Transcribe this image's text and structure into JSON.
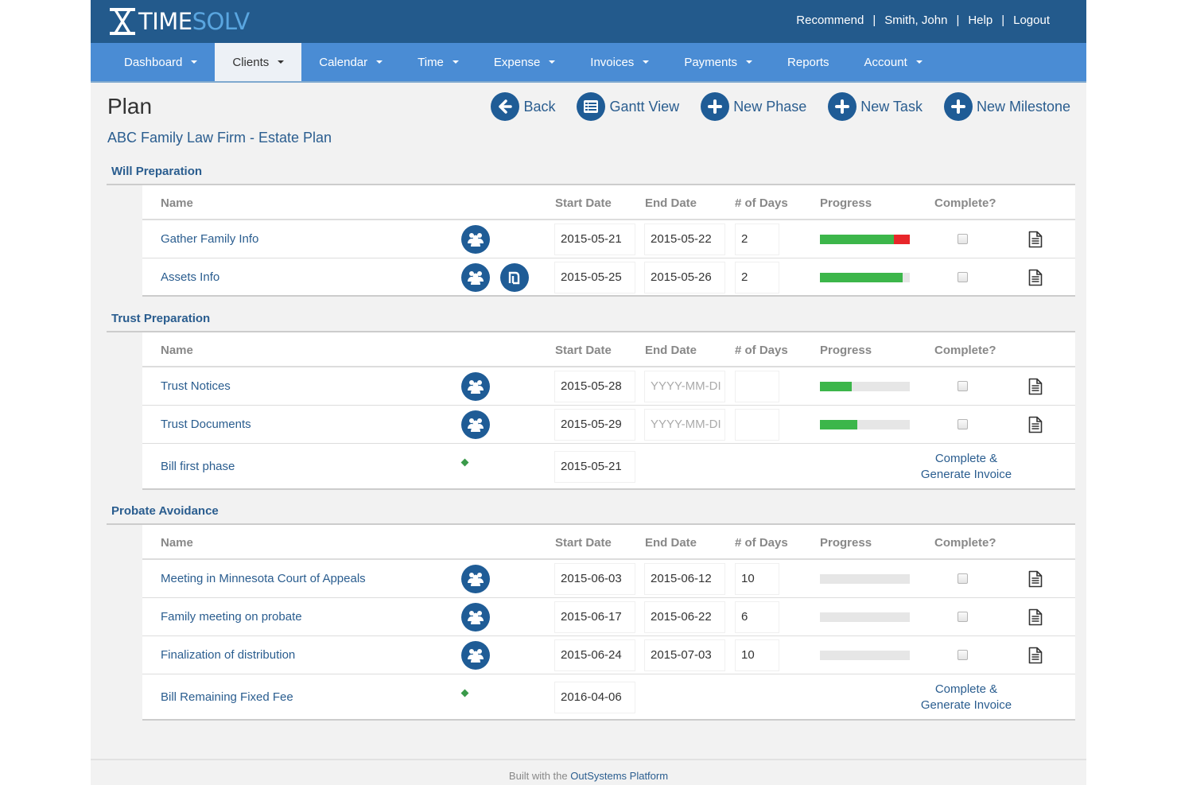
{
  "header": {
    "brand_time": "TIME",
    "brand_solv": "SOLV",
    "links": [
      "Recommend",
      "Smith, John",
      "Help",
      "Logout"
    ]
  },
  "nav": {
    "items": [
      {
        "label": "Dashboard",
        "dropdown": true,
        "active": false
      },
      {
        "label": "Clients",
        "dropdown": true,
        "active": true
      },
      {
        "label": "Calendar",
        "dropdown": true,
        "active": false
      },
      {
        "label": "Time",
        "dropdown": true,
        "active": false
      },
      {
        "label": "Expense",
        "dropdown": true,
        "active": false
      },
      {
        "label": "Invoices",
        "dropdown": true,
        "active": false
      },
      {
        "label": "Payments",
        "dropdown": true,
        "active": false
      },
      {
        "label": "Reports",
        "dropdown": false,
        "active": false
      },
      {
        "label": "Account",
        "dropdown": true,
        "active": false
      }
    ]
  },
  "page": {
    "title": "Plan",
    "subtitle": "ABC Family Law Firm - Estate Plan",
    "actions": [
      "Back",
      "Gantt View",
      "New Phase",
      "New Task",
      "New Milestone"
    ]
  },
  "columns": {
    "name": "Name",
    "start": "Start Date",
    "end": "End Date",
    "days": "# of Days",
    "progress": "Progress",
    "complete": "Complete?"
  },
  "sections": [
    {
      "title": "Will Preparation",
      "rows": [
        {
          "name": "Gather Family Info",
          "start": "2015-05-21",
          "end": "2015-05-22",
          "days": "2",
          "progress_green": 0.82,
          "progress_red": 0.18,
          "fee_icon": false
        },
        {
          "name": "Assets Info",
          "start": "2015-05-25",
          "end": "2015-05-26",
          "days": "2",
          "progress_green": 0.92,
          "progress_red": 0,
          "fee_icon": true
        }
      ]
    },
    {
      "title": "Trust Preparation",
      "rows": [
        {
          "name": "Trust Notices",
          "start": "2015-05-28",
          "end_placeholder": "YYYY-MM-DI",
          "days": "",
          "progress_green": 0.35,
          "progress_red": 0
        },
        {
          "name": "Trust Documents",
          "start": "2015-05-29",
          "end_placeholder": "YYYY-MM-DI",
          "days": "",
          "progress_green": 0.42,
          "progress_red": 0
        },
        {
          "name": "Bill first phase",
          "start": "2015-05-21",
          "milestone_action": "Complete & Generate Invoice"
        }
      ]
    },
    {
      "title": "Probate Avoidance",
      "rows": [
        {
          "name": "Meeting in Minnesota Court of Appeals",
          "start": "2015-06-03",
          "end": "2015-06-12",
          "days": "10",
          "progress_green": 0,
          "progress_red": 0
        },
        {
          "name": "Family meeting on probate",
          "start": "2015-06-17",
          "end": "2015-06-22",
          "days": "6",
          "progress_green": 0,
          "progress_red": 0
        },
        {
          "name": "Finalization of distribution",
          "start": "2015-06-24",
          "end": "2015-07-03",
          "days": "10",
          "progress_green": 0,
          "progress_red": 0
        },
        {
          "name": "Bill Remaining Fixed Fee",
          "start": "2016-04-06",
          "milestone_action": "Complete & Generate Invoice"
        }
      ]
    }
  ],
  "footer": {
    "prefix": "Built with the",
    "link": "OutSystems Platform"
  },
  "colors": {
    "header": "#235a8c",
    "nav": "#4a8cd4",
    "accent": "#1f5c96",
    "progress_green": "#3cb64a",
    "progress_red": "#e8262a"
  },
  "icons": [
    "logo-hourglass-icon",
    "back-arrow-icon",
    "gantt-list-icon",
    "plus-icon",
    "people-icon",
    "fee-icon",
    "document-icon",
    "milestone-diamond-icon",
    "caret-down-icon"
  ]
}
